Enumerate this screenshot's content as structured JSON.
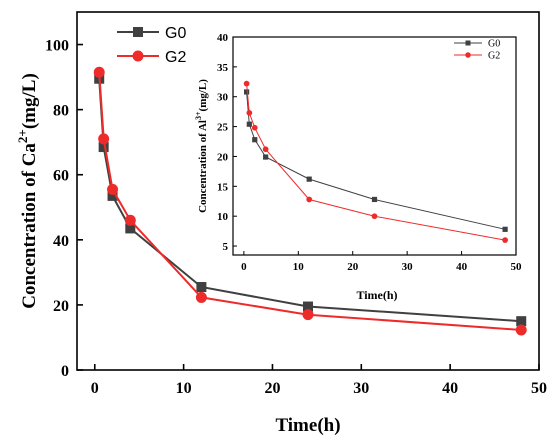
{
  "chart_data": [
    {
      "type": "line",
      "xlabel": "Time(h)",
      "ylabel": "Concentration of Ca",
      "ylabel_sup": "2+",
      "ylabel_unit": "(mg/L)",
      "xlim": [
        -2,
        50
      ],
      "ylim": [
        0,
        110
      ],
      "xticks": [
        0,
        10,
        20,
        30,
        40,
        50
      ],
      "yticks": [
        0,
        20,
        40,
        60,
        80,
        100
      ],
      "legend_position": "top-left",
      "x": [
        0.5,
        1,
        2,
        4,
        12,
        24,
        48
      ],
      "series": [
        {
          "name": "G0",
          "color": "#404040",
          "marker": "square",
          "values": [
            89.5,
            68.5,
            53.5,
            43.5,
            25.5,
            19.5,
            15.0
          ]
        },
        {
          "name": "G2",
          "color": "#ee2b2b",
          "marker": "circle",
          "values": [
            91.5,
            71.0,
            55.5,
            46.0,
            22.3,
            17.0,
            12.3
          ]
        }
      ]
    },
    {
      "type": "line",
      "xlabel": "Time(h)",
      "ylabel": "Concentration of Al",
      "ylabel_sup": "3+",
      "ylabel_unit": "(mg/L)",
      "xlim": [
        -2,
        50
      ],
      "ylim": [
        3.5,
        40
      ],
      "xticks": [
        0,
        10,
        20,
        30,
        40,
        50
      ],
      "yticks": [
        5,
        10,
        15,
        20,
        25,
        30,
        35,
        40
      ],
      "legend_position": "top-right",
      "x": [
        0.5,
        1,
        2,
        4,
        12,
        24,
        48
      ],
      "series": [
        {
          "name": "G0",
          "color": "#404040",
          "marker": "square",
          "values": [
            30.8,
            25.4,
            22.8,
            19.9,
            16.2,
            12.8,
            7.8
          ]
        },
        {
          "name": "G2",
          "color": "#ee2b2b",
          "marker": "circle",
          "values": [
            32.2,
            27.3,
            24.8,
            21.2,
            12.8,
            10.0,
            6.0
          ]
        }
      ]
    }
  ]
}
